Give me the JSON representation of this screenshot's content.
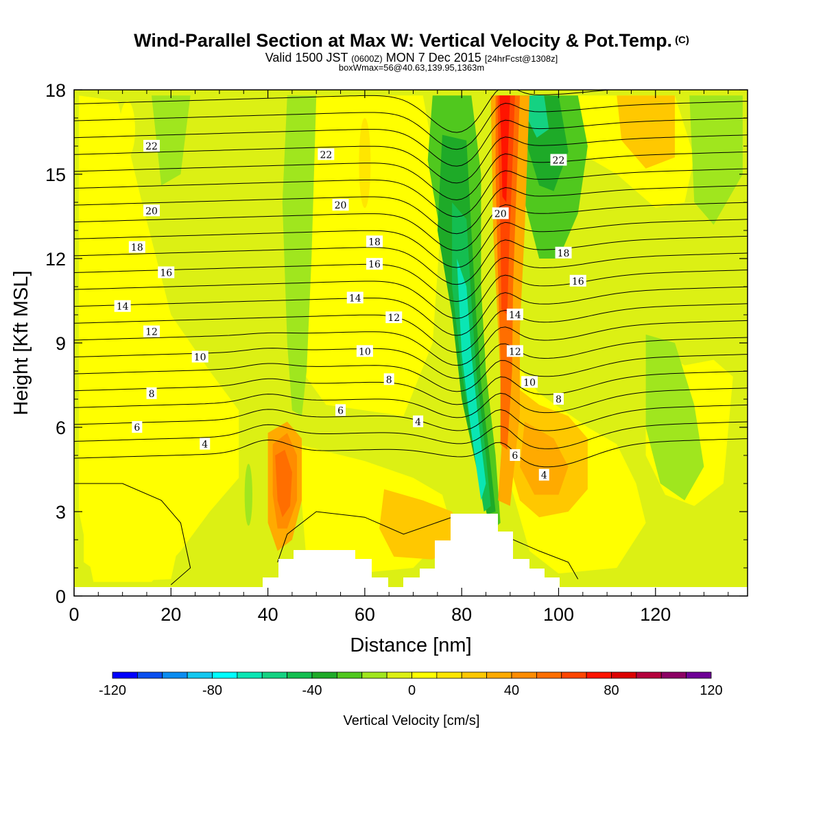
{
  "header": {
    "title_main": "Wind-Parallel Section at Max W: Vertical Velocity & Pot.Temp.",
    "title_mark": "(C)",
    "sub_a": "Valid 1500 JST",
    "sub_b": "(0600Z)",
    "sub_c": "MON 7 Dec 2015",
    "sub_d": "[24hrFcst@1308z]",
    "line3": "boxWmax=56@40.63,139.95,1363m"
  },
  "chart_data": {
    "type": "heatmap",
    "xlabel": "Distance [nm]",
    "ylabel": "Height [Kft MSL]",
    "xlim": [
      0,
      139
    ],
    "ylim": [
      0,
      18
    ],
    "x_ticks": [
      "0",
      "20",
      "40",
      "60",
      "80",
      "100",
      "120"
    ],
    "y_ticks": [
      "0",
      "3",
      "6",
      "9",
      "12",
      "15",
      "18"
    ],
    "colorbar": {
      "title": "Vertical Velocity [cm/s]",
      "tick_labels": [
        "-120",
        "-80",
        "-40",
        "0",
        "40",
        "80",
        "120"
      ],
      "range": [
        -120,
        120
      ],
      "colors": [
        "#0000ff",
        "#0a50f0",
        "#0a8cf0",
        "#14c8f0",
        "#00ffff",
        "#0ae6b4",
        "#14d282",
        "#14be50",
        "#1eaa28",
        "#50c81e",
        "#a0e61e",
        "#dcf014",
        "#ffff00",
        "#ffe600",
        "#ffc800",
        "#ffaa00",
        "#ff8c00",
        "#ff6e00",
        "#ff4600",
        "#ff1400",
        "#dc0000",
        "#b4003c",
        "#8c0064",
        "#6e0096"
      ]
    },
    "velocity_features": [
      {
        "name": "updraft column",
        "x_center": 88,
        "z_range": [
          2.5,
          18
        ],
        "max_w": 80
      },
      {
        "name": "downdraft band",
        "x_center": 80,
        "z_range": [
          2,
          17
        ],
        "min_w": -70
      },
      {
        "name": "low-level updraft",
        "x_center": 43,
        "z_range": [
          2,
          6
        ],
        "max_w": 60
      },
      {
        "name": "downdraft aloft",
        "x_center": 100,
        "z_range": [
          11,
          18
        ],
        "min_w": -50
      }
    ],
    "contour_labels": [
      {
        "text": "22",
        "x": 16,
        "z": 16.0
      },
      {
        "text": "22",
        "x": 52,
        "z": 15.7
      },
      {
        "text": "22",
        "x": 100,
        "z": 15.5
      },
      {
        "text": "20",
        "x": 16,
        "z": 13.7
      },
      {
        "text": "20",
        "x": 55,
        "z": 13.9
      },
      {
        "text": "20",
        "x": 88,
        "z": 13.6
      },
      {
        "text": "18",
        "x": 13,
        "z": 12.4
      },
      {
        "text": "18",
        "x": 62,
        "z": 12.6
      },
      {
        "text": "18",
        "x": 101,
        "z": 12.2
      },
      {
        "text": "16",
        "x": 19,
        "z": 11.5
      },
      {
        "text": "16",
        "x": 62,
        "z": 11.8
      },
      {
        "text": "16",
        "x": 104,
        "z": 11.2
      },
      {
        "text": "14",
        "x": 10,
        "z": 10.3
      },
      {
        "text": "14",
        "x": 58,
        "z": 10.6
      },
      {
        "text": "14",
        "x": 91,
        "z": 10.0
      },
      {
        "text": "12",
        "x": 16,
        "z": 9.4
      },
      {
        "text": "12",
        "x": 66,
        "z": 9.9
      },
      {
        "text": "12",
        "x": 91,
        "z": 8.7
      },
      {
        "text": "10",
        "x": 26,
        "z": 8.5
      },
      {
        "text": "10",
        "x": 60,
        "z": 8.7
      },
      {
        "text": "10",
        "x": 94,
        "z": 7.6
      },
      {
        "text": "8",
        "x": 16,
        "z": 7.2
      },
      {
        "text": "8",
        "x": 65,
        "z": 7.7
      },
      {
        "text": "8",
        "x": 100,
        "z": 7.0
      },
      {
        "text": "6",
        "x": 13,
        "z": 6.0
      },
      {
        "text": "6",
        "x": 55,
        "z": 6.6
      },
      {
        "text": "6",
        "x": 91,
        "z": 5.0
      },
      {
        "text": "4",
        "x": 27,
        "z": 5.4
      },
      {
        "text": "4",
        "x": 71,
        "z": 6.2
      },
      {
        "text": "4",
        "x": 97,
        "z": 4.3
      }
    ],
    "grid": false,
    "legend": "colorbar-bottom"
  }
}
